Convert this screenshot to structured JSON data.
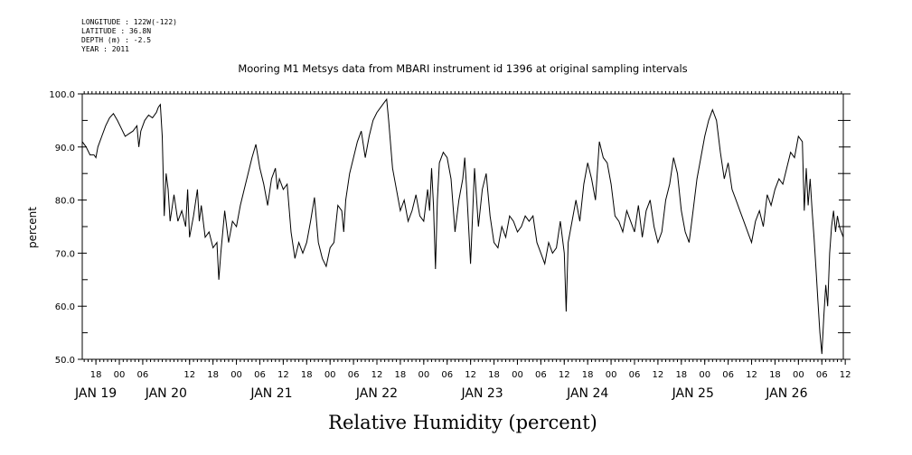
{
  "meta": {
    "longitude": "LONGITUDE : 122W(-122)",
    "latitude": "LATITUDE : 36.8N",
    "depth": "DEPTH (m) : -2.5",
    "year": "YEAR : 2011"
  },
  "chart_data": {
    "type": "line",
    "title": "Mooring M1 Metsys data from MBARI instrument id 1396 at original sampling intervals",
    "xlabel": "Relative Humidity (percent)",
    "ylabel": "percent",
    "ylim": [
      50,
      100
    ],
    "yticks": [
      "50.0",
      "60.0",
      "70.0",
      "80.0",
      "90.0",
      "100.0"
    ],
    "xlim_hours": [
      -9.5,
      185.5
    ],
    "hour_ticks": [
      {
        "h": -6,
        "label": "18"
      },
      {
        "h": 0,
        "label": "00"
      },
      {
        "h": 6,
        "label": "06"
      },
      {
        "h": 18,
        "label": "12"
      },
      {
        "h": 24,
        "label": "18"
      },
      {
        "h": 30,
        "label": "00"
      },
      {
        "h": 36,
        "label": "06"
      },
      {
        "h": 42,
        "label": "12"
      },
      {
        "h": 48,
        "label": "18"
      },
      {
        "h": 54,
        "label": "00"
      },
      {
        "h": 60,
        "label": "06"
      },
      {
        "h": 66,
        "label": "12"
      },
      {
        "h": 72,
        "label": "18"
      },
      {
        "h": 78,
        "label": "00"
      },
      {
        "h": 84,
        "label": "06"
      },
      {
        "h": 90,
        "label": "12"
      },
      {
        "h": 96,
        "label": "18"
      },
      {
        "h": 102,
        "label": "00"
      },
      {
        "h": 108,
        "label": "06"
      },
      {
        "h": 114,
        "label": "12"
      },
      {
        "h": 120,
        "label": "18"
      },
      {
        "h": 126,
        "label": "00"
      },
      {
        "h": 132,
        "label": "06"
      },
      {
        "h": 138,
        "label": "12"
      },
      {
        "h": 144,
        "label": "18"
      },
      {
        "h": 150,
        "label": "00"
      },
      {
        "h": 156,
        "label": "06"
      },
      {
        "h": 162,
        "label": "12"
      },
      {
        "h": 168,
        "label": "18"
      },
      {
        "h": 174,
        "label": "00"
      },
      {
        "h": 180,
        "label": "06"
      },
      {
        "h": 186,
        "label": "12"
      }
    ],
    "day_labels": [
      {
        "h": -6,
        "label": "JAN 19"
      },
      {
        "h": 12,
        "label": "JAN 20"
      },
      {
        "h": 39,
        "label": "JAN 21"
      },
      {
        "h": 66,
        "label": "JAN 22"
      },
      {
        "h": 93,
        "label": "JAN 23"
      },
      {
        "h": 120,
        "label": "JAN 24"
      },
      {
        "h": 147,
        "label": "JAN 25"
      },
      {
        "h": 171,
        "label": "JAN 26"
      }
    ],
    "series": [
      {
        "values": [
          [
            -9.5,
            91
          ],
          [
            -8.5,
            90
          ],
          [
            -7.5,
            88.5
          ],
          [
            -6.5,
            88.5
          ],
          [
            -6,
            88
          ],
          [
            -5.5,
            90
          ],
          [
            -4.5,
            92
          ],
          [
            -3.5,
            94
          ],
          [
            -2.5,
            95.5
          ],
          [
            -1.5,
            96.3
          ],
          [
            -0.5,
            95
          ],
          [
            0.5,
            93.5
          ],
          [
            1.5,
            92
          ],
          [
            2.5,
            92.5
          ],
          [
            3.5,
            93
          ],
          [
            4.5,
            94
          ],
          [
            5,
            90
          ],
          [
            5.5,
            93
          ],
          [
            6.5,
            95
          ],
          [
            7.5,
            96
          ],
          [
            8.5,
            95.5
          ],
          [
            9.5,
            96.5
          ],
          [
            10,
            97.5
          ],
          [
            10.5,
            98
          ],
          [
            11,
            92
          ],
          [
            11.5,
            77
          ],
          [
            12,
            85
          ],
          [
            12.5,
            82
          ],
          [
            13,
            76
          ],
          [
            14,
            81
          ],
          [
            15,
            76
          ],
          [
            16,
            78
          ],
          [
            17,
            75
          ],
          [
            17.5,
            82
          ],
          [
            18,
            73
          ],
          [
            19,
            77
          ],
          [
            20,
            82
          ],
          [
            20.5,
            76
          ],
          [
            21,
            79
          ],
          [
            22,
            73
          ],
          [
            23,
            74
          ],
          [
            24,
            71
          ],
          [
            25,
            72
          ],
          [
            25.5,
            65
          ],
          [
            26,
            70
          ],
          [
            27,
            78
          ],
          [
            28,
            72
          ],
          [
            29,
            76
          ],
          [
            30,
            75
          ],
          [
            31,
            79
          ],
          [
            32,
            82
          ],
          [
            33,
            85
          ],
          [
            34,
            88
          ],
          [
            35,
            90.5
          ],
          [
            36,
            86
          ],
          [
            37,
            83
          ],
          [
            38,
            79
          ],
          [
            39,
            84
          ],
          [
            40,
            86
          ],
          [
            40.5,
            82
          ],
          [
            41,
            84
          ],
          [
            42,
            82
          ],
          [
            43,
            83
          ],
          [
            44,
            74
          ],
          [
            45,
            69
          ],
          [
            46,
            72
          ],
          [
            47,
            70
          ],
          [
            48,
            72
          ],
          [
            49,
            76
          ],
          [
            50,
            80.5
          ],
          [
            51,
            72
          ],
          [
            52,
            69
          ],
          [
            53,
            67.5
          ],
          [
            54,
            71
          ],
          [
            55,
            72
          ],
          [
            56,
            79
          ],
          [
            57,
            78
          ],
          [
            57.5,
            74
          ],
          [
            58,
            80
          ],
          [
            59,
            85
          ],
          [
            60,
            88
          ],
          [
            61,
            91
          ],
          [
            62,
            93
          ],
          [
            63,
            88
          ],
          [
            64,
            92
          ],
          [
            65,
            95
          ],
          [
            66,
            96.5
          ],
          [
            67,
            97.5
          ],
          [
            68,
            98.5
          ],
          [
            68.5,
            99
          ],
          [
            69,
            95
          ],
          [
            70,
            86
          ],
          [
            71,
            82
          ],
          [
            72,
            78
          ],
          [
            73,
            80
          ],
          [
            74,
            76
          ],
          [
            75,
            78
          ],
          [
            76,
            81
          ],
          [
            77,
            77
          ],
          [
            78,
            76
          ],
          [
            79,
            82
          ],
          [
            79.5,
            78
          ],
          [
            80,
            86
          ],
          [
            80.5,
            79
          ],
          [
            81,
            67
          ],
          [
            81.5,
            80
          ],
          [
            82,
            87
          ],
          [
            83,
            89
          ],
          [
            84,
            88
          ],
          [
            85,
            84
          ],
          [
            86,
            74
          ],
          [
            87,
            80
          ],
          [
            88,
            84
          ],
          [
            88.5,
            88
          ],
          [
            89,
            82
          ],
          [
            90,
            68
          ],
          [
            91,
            86
          ],
          [
            92,
            75
          ],
          [
            93,
            82
          ],
          [
            94,
            85
          ],
          [
            95,
            77
          ],
          [
            96,
            72
          ],
          [
            97,
            71
          ],
          [
            98,
            75
          ],
          [
            99,
            73
          ],
          [
            100,
            77
          ],
          [
            101,
            76
          ],
          [
            102,
            74
          ],
          [
            103,
            75
          ],
          [
            104,
            77
          ],
          [
            105,
            76
          ],
          [
            106,
            77
          ],
          [
            107,
            72
          ],
          [
            108,
            70
          ],
          [
            109,
            68
          ],
          [
            110,
            72
          ],
          [
            111,
            70
          ],
          [
            112,
            71
          ],
          [
            113,
            76
          ],
          [
            114,
            70
          ],
          [
            114.5,
            59
          ],
          [
            115,
            72
          ],
          [
            116,
            76
          ],
          [
            117,
            80
          ],
          [
            118,
            76
          ],
          [
            119,
            83
          ],
          [
            120,
            87
          ],
          [
            121,
            84
          ],
          [
            122,
            80
          ],
          [
            123,
            91
          ],
          [
            124,
            88
          ],
          [
            125,
            87
          ],
          [
            126,
            83
          ],
          [
            127,
            77
          ],
          [
            128,
            76
          ],
          [
            129,
            74
          ],
          [
            130,
            78
          ],
          [
            131,
            76
          ],
          [
            132,
            74
          ],
          [
            133,
            79
          ],
          [
            134,
            73
          ],
          [
            135,
            78
          ],
          [
            136,
            80
          ],
          [
            137,
            75
          ],
          [
            138,
            72
          ],
          [
            139,
            74
          ],
          [
            140,
            80
          ],
          [
            141,
            83
          ],
          [
            142,
            88
          ],
          [
            143,
            85
          ],
          [
            144,
            78
          ],
          [
            145,
            74
          ],
          [
            146,
            72
          ],
          [
            147,
            78
          ],
          [
            148,
            84
          ],
          [
            149,
            88
          ],
          [
            150,
            92
          ],
          [
            151,
            95
          ],
          [
            152,
            97
          ],
          [
            153,
            95
          ],
          [
            154,
            89
          ],
          [
            155,
            84
          ],
          [
            156,
            87
          ],
          [
            157,
            82
          ],
          [
            158,
            80
          ],
          [
            159,
            78
          ],
          [
            160,
            76
          ],
          [
            161,
            74
          ],
          [
            162,
            72
          ],
          [
            163,
            76
          ],
          [
            164,
            78
          ],
          [
            165,
            75
          ],
          [
            166,
            81
          ],
          [
            167,
            79
          ],
          [
            168,
            82
          ],
          [
            169,
            84
          ],
          [
            170,
            83
          ],
          [
            171,
            86
          ],
          [
            172,
            89
          ],
          [
            173,
            88
          ],
          [
            174,
            92
          ],
          [
            175,
            91
          ],
          [
            175.5,
            78
          ],
          [
            176,
            86
          ],
          [
            176.5,
            79
          ],
          [
            177,
            84
          ],
          [
            177.5,
            78
          ],
          [
            178,
            73
          ],
          [
            178.5,
            67
          ],
          [
            179,
            61
          ],
          [
            179.5,
            55
          ],
          [
            180,
            51
          ],
          [
            180.5,
            58
          ],
          [
            181,
            64
          ],
          [
            181.5,
            60
          ],
          [
            182,
            70
          ],
          [
            182.5,
            75
          ],
          [
            183,
            78
          ],
          [
            183.5,
            74
          ],
          [
            184,
            77
          ],
          [
            184.5,
            75
          ],
          [
            185,
            74
          ],
          [
            185.5,
            73
          ]
        ]
      }
    ]
  }
}
